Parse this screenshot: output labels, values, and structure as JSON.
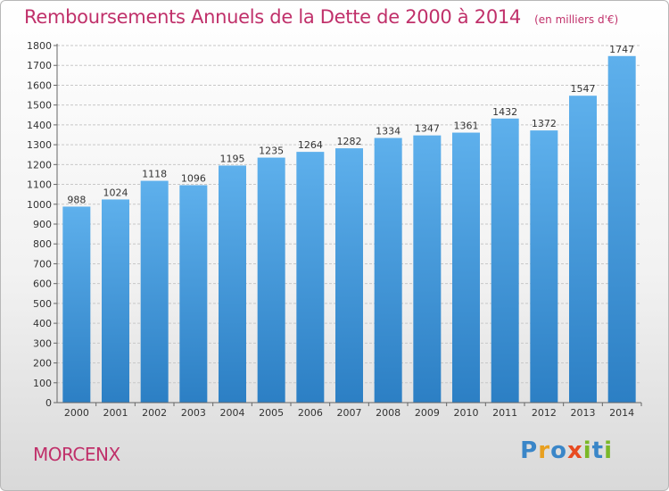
{
  "title": "Remboursements Annuels de la Dette de 2000 à 2014",
  "subtitle": "(en milliers d'€)",
  "place": "MORCENX",
  "logo": {
    "text": "Proxiti",
    "letters": [
      {
        "ch": "P",
        "color": "#3a86c8"
      },
      {
        "ch": "r",
        "color": "#e8a020"
      },
      {
        "ch": "o",
        "color": "#3a86c8"
      },
      {
        "ch": "x",
        "color": "#e84a20"
      },
      {
        "ch": "i",
        "color": "#7ab828"
      },
      {
        "ch": "t",
        "color": "#3a86c8"
      },
      {
        "ch": "i",
        "color": "#7ab828"
      }
    ]
  },
  "colors": {
    "bar_top": "#5eb0ec",
    "bar_bottom": "#2c7fc4",
    "grid": "#c8c8c8",
    "axis_text": "#333333",
    "accent": "#c0306a"
  },
  "chart_data": {
    "type": "bar",
    "categories": [
      "2000",
      "2001",
      "2002",
      "2003",
      "2004",
      "2005",
      "2006",
      "2007",
      "2008",
      "2009",
      "2010",
      "2011",
      "2012",
      "2013",
      "2014"
    ],
    "values": [
      988,
      1024,
      1118,
      1096,
      1195,
      1235,
      1264,
      1282,
      1334,
      1347,
      1361,
      1432,
      1372,
      1547,
      1747
    ],
    "ylim": [
      0,
      1800
    ],
    "ytick_step": 100,
    "grid": true,
    "data_labels": true
  }
}
